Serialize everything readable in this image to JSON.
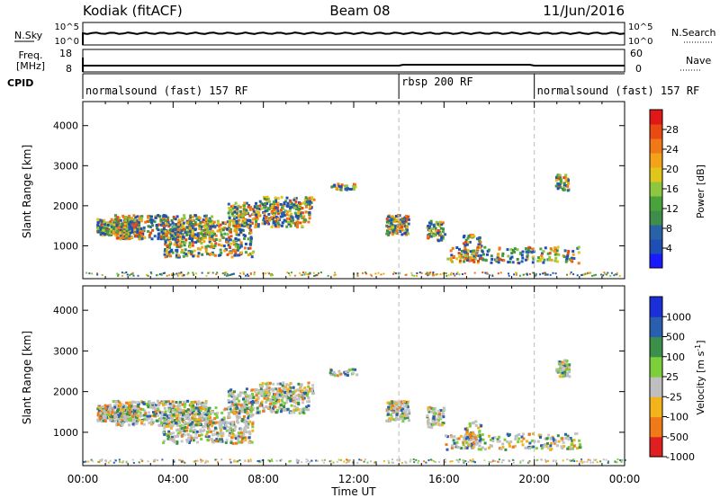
{
  "header": {
    "station": "Kodiak (fitACF)",
    "beam": "Beam 08",
    "date": "11/Jun/2016"
  },
  "side_labels": {
    "nsky": "N.Sky",
    "nsearch": "N.Search",
    "freq": "Freq.",
    "freq_unit": "[MHz]",
    "nave": "Nave",
    "cpid": "CPID"
  },
  "strip_ticks": {
    "noise_left_top": "10^5",
    "noise_left_bottom": "10^0",
    "noise_right_top": "10^5",
    "noise_right_bottom": "10^0",
    "freq_top": "18",
    "freq_bottom": "8",
    "nave_top": "60",
    "nave_bottom": "0"
  },
  "cpid_segments": [
    {
      "label": "normalsound (fast) 157 RF",
      "start_h": 0,
      "end_h": 14
    },
    {
      "label": "rbsp 200 RF",
      "start_h": 14,
      "end_h": 20
    },
    {
      "label": "normalsound (fast) 157 RF",
      "start_h": 20,
      "end_h": 24
    }
  ],
  "chart_data": [
    {
      "type": "heatmap",
      "title": "Power",
      "ylabel": "Slant Range [km]",
      "xlabel": "Time UT",
      "xlim": [
        "00:00",
        "24:00"
      ],
      "ylim": [
        180,
        4600
      ],
      "y_ticks": [
        "1000",
        "2000",
        "3000",
        "4000"
      ],
      "colorbar": {
        "label": "Power [dB]",
        "range": [
          0,
          32
        ],
        "ticks": [
          "4",
          "8",
          "12",
          "16",
          "20",
          "24",
          "28"
        ],
        "colors": [
          "#1a1aff",
          "#1f4fb4",
          "#2a62a8",
          "#3f8d4a",
          "#4aa33a",
          "#8dc63f",
          "#e0c61a",
          "#f4a21a",
          "#f07818",
          "#e84a12",
          "#e01818"
        ]
      }
    },
    {
      "type": "heatmap",
      "title": "Velocity",
      "ylabel": "Slant Range [km]",
      "xlabel": "Time UT",
      "xlim": [
        "00:00",
        "24:00"
      ],
      "ylim": [
        180,
        4600
      ],
      "y_ticks": [
        "1000",
        "2000",
        "3000",
        "4000"
      ],
      "x_ticks": [
        "00:00",
        "04:00",
        "08:00",
        "12:00",
        "16:00",
        "20:00",
        "00:00"
      ],
      "colorbar": {
        "label": "Velocity [m s-1]",
        "ticks": [
          "1000",
          "500",
          "100",
          "25",
          "-25",
          "-100",
          "-500",
          "-1000"
        ],
        "colors": [
          "#1a2fd8",
          "#2a5fb0",
          "#3a8f4a",
          "#7ccf3a",
          "#bfbfbf",
          "#f2b41a",
          "#f07a18",
          "#e02020"
        ]
      }
    }
  ],
  "axis_titles": {
    "xlabel": "Time UT",
    "ylabel": "Slant Range [km]",
    "power_label": "Power [dB]",
    "velocity_label": "Velocity [m s"
  }
}
